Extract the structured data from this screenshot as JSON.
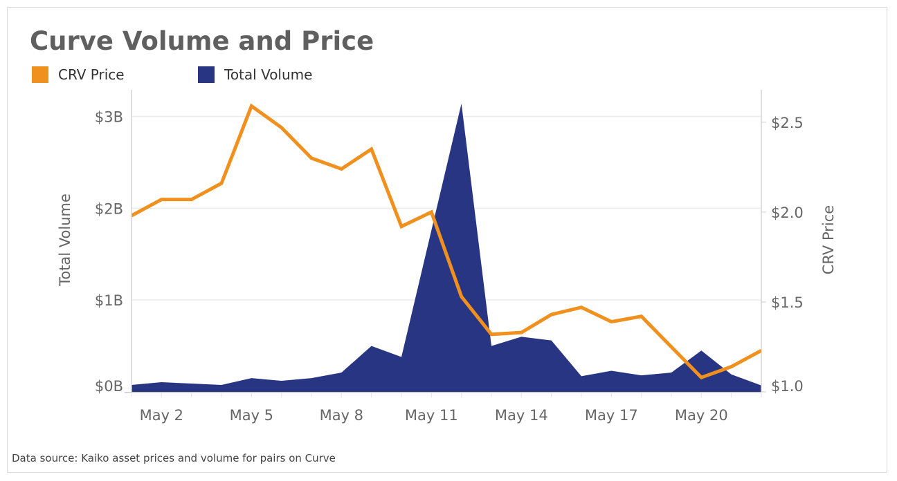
{
  "chart_data": {
    "type": "line",
    "title": "Curve Volume and Price",
    "xlabel": "",
    "x": [
      "May 1",
      "May 2",
      "May 3",
      "May 4",
      "May 5",
      "May 6",
      "May 7",
      "May 8",
      "May 9",
      "May 10",
      "May 11",
      "May 12",
      "May 13",
      "May 14",
      "May 15",
      "May 16",
      "May 17",
      "May 18",
      "May 19",
      "May 20",
      "May 21",
      "May 22"
    ],
    "x_tick_labels": [
      "May 2",
      "May 5",
      "May 8",
      "May 11",
      "May 14",
      "May 17",
      "May 20"
    ],
    "series": [
      {
        "name": "Total Volume",
        "type": "area",
        "axis": "left",
        "color": "#283583",
        "values": [
          0.075,
          0.105,
          0.09,
          0.075,
          0.15,
          0.12,
          0.15,
          0.21,
          0.5,
          0.38,
          1.76,
          3.14,
          0.5,
          0.6,
          0.56,
          0.17,
          0.23,
          0.18,
          0.21,
          0.45,
          0.19,
          0.07
        ]
      },
      {
        "name": "CRV Price",
        "type": "line",
        "axis": "right",
        "color": "#f0901e",
        "values": [
          1.98,
          2.07,
          2.07,
          2.16,
          2.59,
          2.47,
          2.3,
          2.24,
          2.35,
          1.92,
          2.0,
          1.53,
          1.32,
          1.33,
          1.43,
          1.47,
          1.39,
          1.42,
          1.25,
          1.08,
          1.14,
          1.23
        ]
      }
    ],
    "y_left": {
      "label": "Total Volume",
      "ticks": [
        "$0B",
        "$1B",
        "$2B",
        "$3B"
      ],
      "tick_values": [
        0,
        1,
        2,
        3
      ],
      "ylim": [
        0,
        3.29
      ]
    },
    "y_right": {
      "label": "CRV Price",
      "ticks": [
        "$1.0",
        "$1.5",
        "$2.0",
        "$2.5"
      ],
      "tick_values": [
        1.0,
        1.5,
        2.0,
        2.5
      ],
      "ylim": [
        1.0,
        2.68
      ]
    },
    "grid": true,
    "legend": [
      {
        "label": "CRV Price",
        "color": "#f0901e"
      },
      {
        "label": "Total Volume",
        "color": "#283583"
      }
    ],
    "legend_position": "top-left"
  },
  "footer": "Data source: Kaiko asset prices and volume for pairs on Curve"
}
